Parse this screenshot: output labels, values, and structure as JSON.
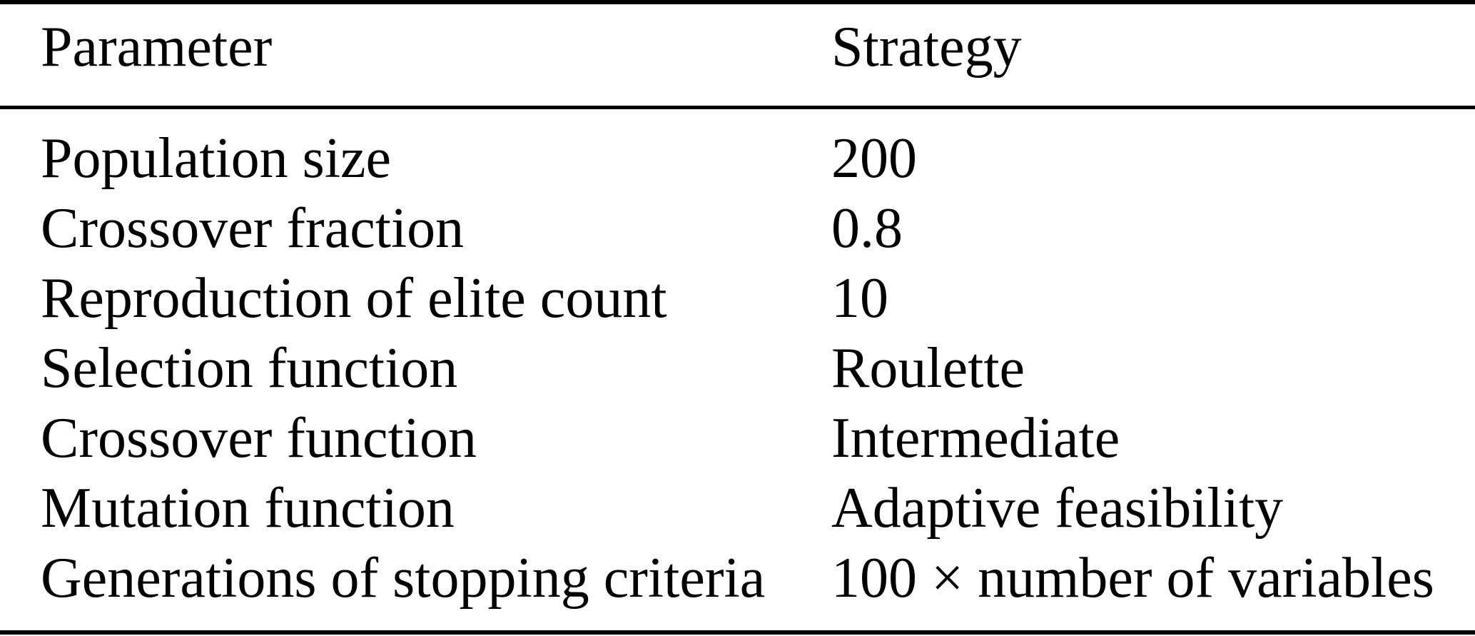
{
  "table": {
    "columns": [
      {
        "key": "parameter",
        "label": "Parameter"
      },
      {
        "key": "strategy",
        "label": "Strategy"
      }
    ],
    "rows": [
      {
        "parameter": "Population size",
        "strategy": "200"
      },
      {
        "parameter": "Crossover fraction",
        "strategy": "0.8"
      },
      {
        "parameter": "Reproduction of elite count",
        "strategy": "10"
      },
      {
        "parameter": "Selection function",
        "strategy": "Roulette"
      },
      {
        "parameter": "Crossover function",
        "strategy": "Intermediate"
      },
      {
        "parameter": "Mutation function",
        "strategy": "Adaptive feasibility"
      },
      {
        "parameter": "Generations of stopping criteria",
        "strategy": "100 × number of variables"
      }
    ]
  },
  "colors": {
    "text": "#000000",
    "background": "#ffffff",
    "rule": "#000000"
  }
}
